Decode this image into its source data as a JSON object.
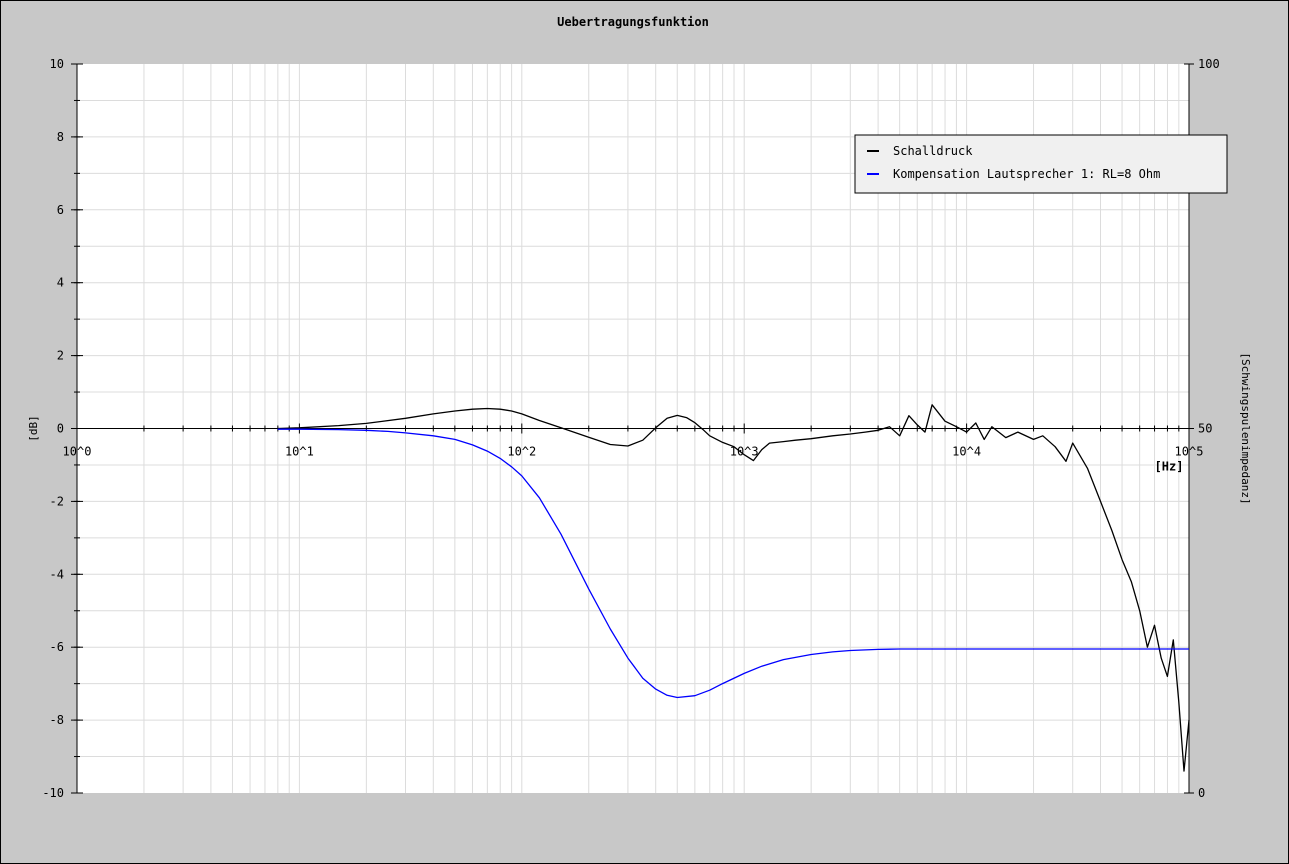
{
  "colors": {
    "background": "#c8c8c8",
    "plot_background": "#ffffff",
    "grid": "#dcdcdc",
    "axis": "#000000",
    "series_schalldruck": "#000000",
    "series_kompensation": "#0000ff"
  },
  "chart_data": {
    "type": "line",
    "title": "Uebertragungsfunktion",
    "xlabel": "[Hz]",
    "ylabel": "[dB]",
    "y2label": "[Schwingspulenimpedanz]",
    "x_scale": "log",
    "xlim": [
      1,
      100000
    ],
    "ylim": [
      -10,
      10
    ],
    "y2lim": [
      0,
      100
    ],
    "grid": true,
    "legend_position": "top-right",
    "x_tick_labels": [
      "10^0",
      "10^1",
      "10^2",
      "10^3",
      "10^4",
      "10^5"
    ],
    "y_tick_labels": [
      "10",
      "8",
      "6",
      "4",
      "2",
      "0",
      "-2",
      "-4",
      "-6",
      "-8",
      "-10"
    ],
    "y2_tick_labels": [
      "100",
      "50",
      "0"
    ],
    "series": [
      {
        "name": "Schalldruck",
        "color": "#000000",
        "x": [
          8,
          10,
          15,
          20,
          30,
          40,
          50,
          60,
          70,
          80,
          90,
          100,
          120,
          150,
          200,
          250,
          300,
          350,
          400,
          450,
          500,
          550,
          600,
          650,
          700,
          800,
          900,
          1000,
          1100,
          1200,
          1300,
          1500,
          1700,
          2000,
          2500,
          3000,
          3500,
          4000,
          4500,
          5000,
          5500,
          6000,
          6500,
          7000,
          8000,
          9000,
          10000,
          11000,
          12000,
          13000,
          15000,
          17000,
          20000,
          22000,
          25000,
          28000,
          30000,
          35000,
          40000,
          45000,
          50000,
          55000,
          60000,
          65000,
          70000,
          75000,
          80000,
          85000,
          90000,
          95000,
          100000
        ],
        "y": [
          0.0,
          0.02,
          0.08,
          0.14,
          0.28,
          0.4,
          0.48,
          0.53,
          0.55,
          0.53,
          0.48,
          0.4,
          0.22,
          0.02,
          -0.24,
          -0.44,
          -0.48,
          -0.32,
          0.02,
          0.28,
          0.36,
          0.3,
          0.16,
          -0.02,
          -0.2,
          -0.38,
          -0.5,
          -0.72,
          -0.88,
          -0.58,
          -0.4,
          -0.36,
          -0.32,
          -0.28,
          -0.2,
          -0.15,
          -0.1,
          -0.05,
          0.05,
          -0.2,
          0.35,
          0.1,
          -0.1,
          0.65,
          0.2,
          0.05,
          -0.1,
          0.15,
          -0.3,
          0.05,
          -0.25,
          -0.1,
          -0.3,
          -0.2,
          -0.5,
          -0.9,
          -0.4,
          -1.1,
          -2.0,
          -2.8,
          -3.6,
          -4.2,
          -5.0,
          -6.0,
          -5.4,
          -6.3,
          -6.8,
          -5.8,
          -7.5,
          -9.4,
          -8.0
        ]
      },
      {
        "name": "Kompensation Lautsprecher 1: RL=8 Ohm",
        "color": "#0000ff",
        "x": [
          8,
          10,
          15,
          20,
          25,
          30,
          40,
          50,
          60,
          70,
          80,
          90,
          100,
          120,
          150,
          200,
          250,
          300,
          350,
          400,
          450,
          500,
          600,
          700,
          800,
          1000,
          1200,
          1500,
          2000,
          2500,
          3000,
          4000,
          5000,
          6000,
          7000,
          8000,
          10000,
          20000,
          50000,
          100000
        ],
        "y": [
          -0.02,
          -0.02,
          -0.03,
          -0.05,
          -0.08,
          -0.12,
          -0.2,
          -0.3,
          -0.45,
          -0.62,
          -0.82,
          -1.05,
          -1.3,
          -1.9,
          -2.9,
          -4.4,
          -5.5,
          -6.3,
          -6.85,
          -7.15,
          -7.32,
          -7.38,
          -7.33,
          -7.18,
          -7.0,
          -6.72,
          -6.52,
          -6.34,
          -6.2,
          -6.13,
          -6.09,
          -6.06,
          -6.05,
          -6.05,
          -6.05,
          -6.05,
          -6.05,
          -6.05,
          -6.05,
          -6.05
        ]
      }
    ]
  }
}
